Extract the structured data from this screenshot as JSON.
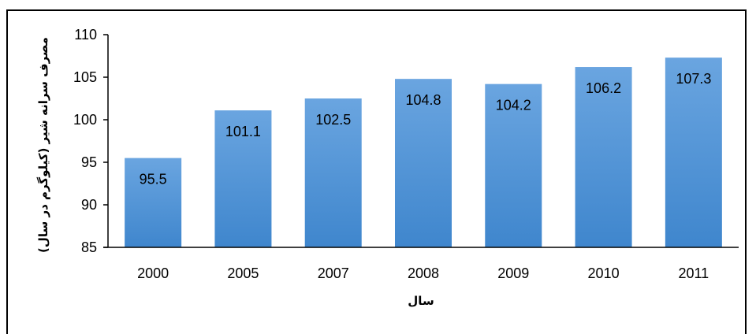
{
  "chart_data": {
    "type": "bar",
    "categories": [
      "2000",
      "2005",
      "2007",
      "2008",
      "2009",
      "2010",
      "2011"
    ],
    "values": [
      95.5,
      101.1,
      102.5,
      104.8,
      104.2,
      106.2,
      107.3
    ],
    "data_labels": [
      "95.5",
      "101.1",
      "102.5",
      "104.8",
      "104.2",
      "106.2",
      "107.3"
    ],
    "ylim": [
      85,
      110
    ],
    "yticks": [
      "85",
      "90",
      "95",
      "100",
      "105",
      "110"
    ],
    "xlabel": "سال",
    "ylabel": "مصرف سرانه شیر (کیلوگرم در سال)",
    "title": "",
    "grid": false,
    "legend": "none",
    "colors": {
      "bar_top": "#6aa5e0",
      "bar_bottom": "#3f86cd",
      "axis": "#000000"
    }
  }
}
